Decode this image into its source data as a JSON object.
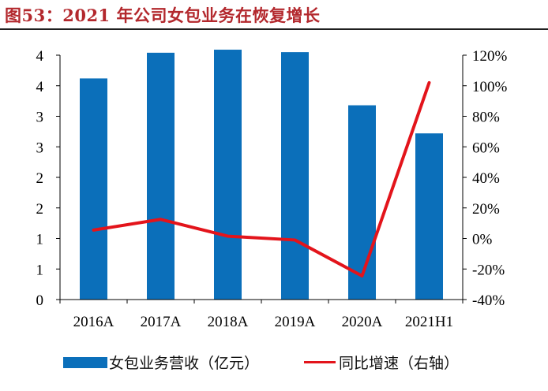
{
  "title": "图53：2021 年公司女包业务在恢复增长",
  "colors": {
    "bar": "#0b6fba",
    "line": "#e3141b",
    "title": "#b3282d",
    "axis": "#000000"
  },
  "chart_data": {
    "type": "bar",
    "title": "图53：2021 年公司女包业务在恢复增长",
    "categories": [
      "2016A",
      "2017A",
      "2018A",
      "2019A",
      "2020A",
      "2021H1"
    ],
    "series": [
      {
        "name": "女包业务营收（亿元）",
        "type": "bar",
        "axis": "left",
        "values": [
          3.62,
          4.04,
          4.09,
          4.05,
          3.18,
          2.72
        ]
      },
      {
        "name": "同比增速（右轴）",
        "type": "line",
        "axis": "right",
        "values": [
          0.055,
          0.125,
          0.015,
          -0.01,
          -0.245,
          1.02
        ]
      }
    ],
    "left_axis": {
      "ylim": [
        0,
        4
      ],
      "tick_values": [
        0,
        0.5,
        1,
        1.5,
        2,
        2.5,
        3,
        3.5,
        4
      ],
      "tick_labels": [
        "0",
        "1",
        "1",
        "2",
        "2",
        "3",
        "3",
        "4",
        "4"
      ]
    },
    "right_axis": {
      "ylim": [
        -0.4,
        1.2
      ],
      "tick_values": [
        -0.4,
        -0.2,
        0,
        0.2,
        0.4,
        0.6,
        0.8,
        1.0,
        1.2
      ],
      "tick_labels": [
        "-40%",
        "-20%",
        "0%",
        "20%",
        "40%",
        "60%",
        "80%",
        "100%",
        "120%"
      ]
    },
    "legend": [
      "女包业务营收（亿元）",
      "同比增速（右轴）"
    ],
    "legend_position": "bottom",
    "grid": false
  }
}
